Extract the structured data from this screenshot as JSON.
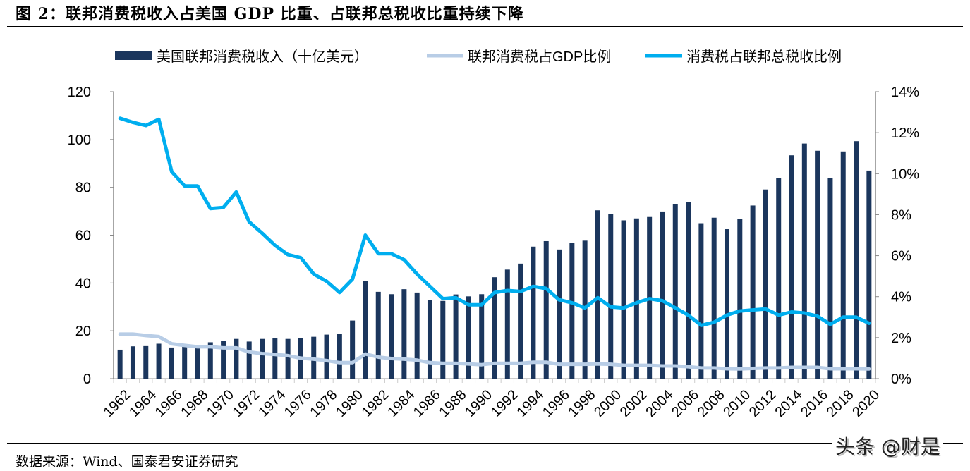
{
  "title": "图 2：联邦消费税收入占美国 GDP 比重、占联邦总税收比重持续下降",
  "source": "数据来源：Wind、国泰君安证券研究",
  "watermark": "头条 @财是",
  "chart_data": {
    "type": "bar+line",
    "legend_position": "top",
    "grid": false,
    "x": [
      1962,
      1963,
      1964,
      1965,
      1966,
      1967,
      1968,
      1969,
      1970,
      1971,
      1972,
      1973,
      1974,
      1975,
      1976,
      1977,
      1978,
      1979,
      1980,
      1981,
      1982,
      1983,
      1984,
      1985,
      1986,
      1987,
      1988,
      1989,
      1990,
      1991,
      1992,
      1993,
      1994,
      1995,
      1996,
      1997,
      1998,
      1999,
      2000,
      2001,
      2002,
      2003,
      2004,
      2005,
      2006,
      2007,
      2008,
      2009,
      2010,
      2011,
      2012,
      2013,
      2014,
      2015,
      2016,
      2017,
      2018,
      2019,
      2020
    ],
    "x_tick_labels": [
      "1962",
      "1964",
      "1966",
      "1968",
      "1970",
      "1972",
      "1974",
      "1976",
      "1978",
      "1980",
      "1982",
      "1984",
      "1986",
      "1988",
      "1990",
      "1992",
      "1994",
      "1996",
      "1998",
      "2000",
      "2002",
      "2004",
      "2006",
      "2008",
      "2010",
      "2012",
      "2014",
      "2016",
      "2018",
      "2020"
    ],
    "y_left": {
      "range": [
        0,
        120
      ],
      "ticks": [
        "0",
        "20",
        "40",
        "60",
        "80",
        "100",
        "120"
      ]
    },
    "y_right": {
      "range": [
        0,
        14
      ],
      "ticks": [
        "0%",
        "2%",
        "4%",
        "6%",
        "8%",
        "10%",
        "12%",
        "14%"
      ]
    },
    "series": [
      {
        "name": "美国联邦消费税收入（十亿美元）",
        "type": "bar",
        "axis": "left",
        "color": "#1b365d",
        "values": [
          12.1,
          13.5,
          13.6,
          14.6,
          13.0,
          13.7,
          14.1,
          15.2,
          15.7,
          16.6,
          15.5,
          16.6,
          16.8,
          16.6,
          17.0,
          17.5,
          18.4,
          18.7,
          24.3,
          40.8,
          36.3,
          35.3,
          37.4,
          36.0,
          32.9,
          32.5,
          35.2,
          34.4,
          35.3,
          42.4,
          45.6,
          48.1,
          55.2,
          57.5,
          54.0,
          56.9,
          57.7,
          70.4,
          68.9,
          66.2,
          67.0,
          67.6,
          69.9,
          73.1,
          74.0,
          65.0,
          67.3,
          62.5,
          66.9,
          72.4,
          79.1,
          84.0,
          93.4,
          98.3,
          95.3,
          83.8,
          95.0,
          99.3,
          87.0
        ]
      },
      {
        "name": "联邦消费税占GDP比例",
        "type": "line",
        "axis": "right",
        "color": "#b8cde6",
        "values": [
          2.17,
          2.17,
          2.1,
          2.05,
          1.7,
          1.62,
          1.55,
          1.55,
          1.5,
          1.5,
          1.3,
          1.22,
          1.18,
          1.12,
          1.0,
          0.95,
          0.88,
          0.78,
          0.78,
          1.2,
          1.05,
          0.98,
          0.95,
          0.9,
          0.78,
          0.75,
          0.75,
          0.72,
          0.68,
          0.75,
          0.75,
          0.75,
          0.8,
          0.8,
          0.7,
          0.7,
          0.7,
          0.72,
          0.7,
          0.65,
          0.65,
          0.65,
          0.62,
          0.62,
          0.58,
          0.52,
          0.52,
          0.48,
          0.47,
          0.5,
          0.52,
          0.52,
          0.55,
          0.55,
          0.55,
          0.48,
          0.48,
          0.48,
          0.47
        ]
      },
      {
        "name": "消费税占联邦总税收比例",
        "type": "line",
        "axis": "right",
        "color": "#00aeef",
        "values": [
          12.7,
          12.5,
          12.35,
          12.65,
          10.1,
          9.4,
          9.4,
          8.3,
          8.35,
          9.1,
          7.65,
          7.1,
          6.5,
          6.05,
          5.9,
          5.1,
          4.75,
          4.2,
          4.85,
          7.0,
          6.1,
          6.1,
          5.8,
          5.1,
          4.5,
          3.9,
          3.95,
          3.6,
          3.6,
          4.2,
          4.3,
          4.25,
          4.5,
          4.4,
          3.85,
          3.7,
          3.45,
          3.95,
          3.5,
          3.45,
          3.7,
          3.9,
          3.8,
          3.45,
          3.1,
          2.6,
          2.75,
          3.1,
          3.3,
          3.35,
          3.4,
          3.1,
          3.25,
          3.2,
          3.05,
          2.65,
          3.0,
          3.0,
          2.7
        ]
      }
    ]
  }
}
